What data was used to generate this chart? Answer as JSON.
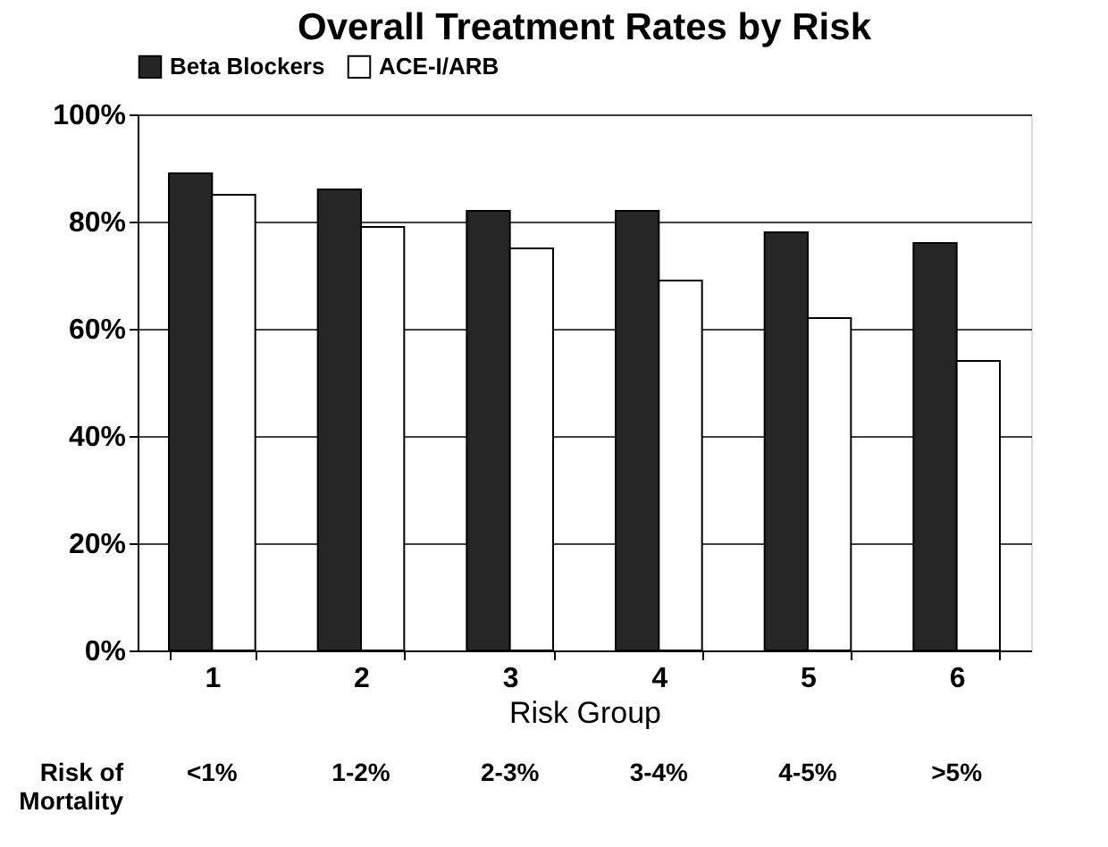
{
  "chart_data": {
    "type": "bar",
    "title": "Overall Treatment Rates by Risk",
    "xlabel": "Risk Group",
    "categories": [
      "1",
      "2",
      "3",
      "4",
      "5",
      "6"
    ],
    "series": [
      {
        "name": "Beta Blockers",
        "color": "#262626",
        "values": [
          89,
          86,
          82,
          82,
          78,
          76
        ]
      },
      {
        "name": "ACE-I/ARB",
        "color": "#ffffff",
        "values": [
          85,
          79,
          75,
          69,
          62,
          54
        ]
      }
    ],
    "ylim": [
      0,
      100
    ],
    "yticks": [
      {
        "value": 0,
        "label": "0%"
      },
      {
        "value": 20,
        "label": "20%"
      },
      {
        "value": 40,
        "label": "40%"
      },
      {
        "value": 60,
        "label": "60%"
      },
      {
        "value": 80,
        "label": "80%"
      },
      {
        "value": 100,
        "label": "100%"
      }
    ],
    "grid": "y",
    "legend": "top",
    "annotations": [
      "Risk of\nMortality",
      "<1%",
      "1-2%",
      "2-3%",
      "3-4%",
      "4-5%",
      ">5%"
    ]
  }
}
